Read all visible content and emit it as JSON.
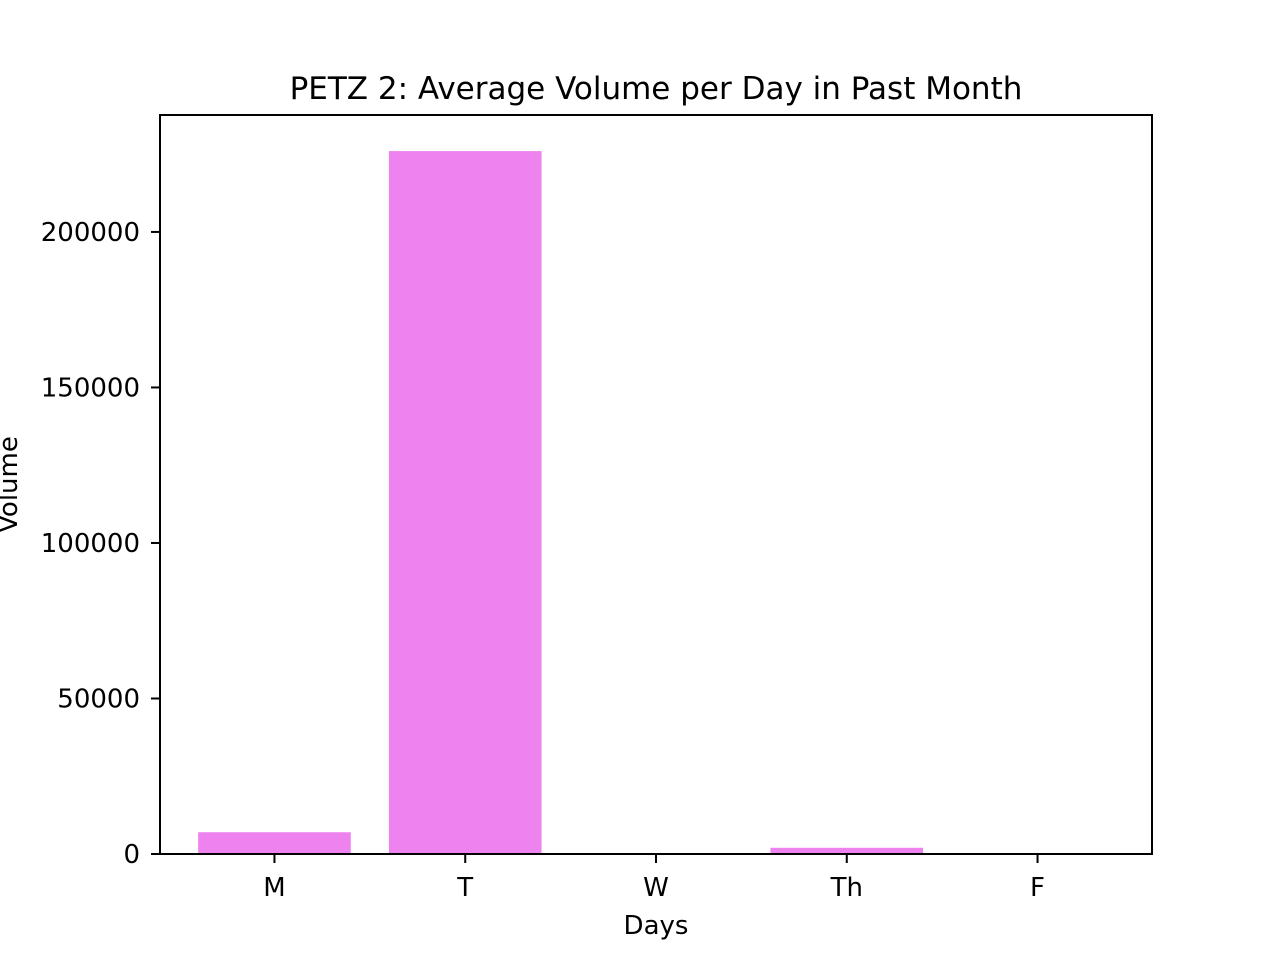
{
  "chart_data": {
    "type": "bar",
    "title": "PETZ 2: Average Volume per Day in Past Month",
    "xlabel": "Days",
    "ylabel": "Volume",
    "categories": [
      "M",
      "T",
      "W",
      "Th",
      "F"
    ],
    "values": [
      7000,
      226000,
      300,
      2000,
      300
    ],
    "ylim": [
      0,
      237600
    ],
    "yticks": [
      0,
      50000,
      100000,
      150000,
      200000
    ],
    "ytick_labels": [
      "0",
      "50000",
      "100000",
      "150000",
      "200000"
    ],
    "bar_color": "#ee82ee",
    "grid": false,
    "legend": "none"
  }
}
